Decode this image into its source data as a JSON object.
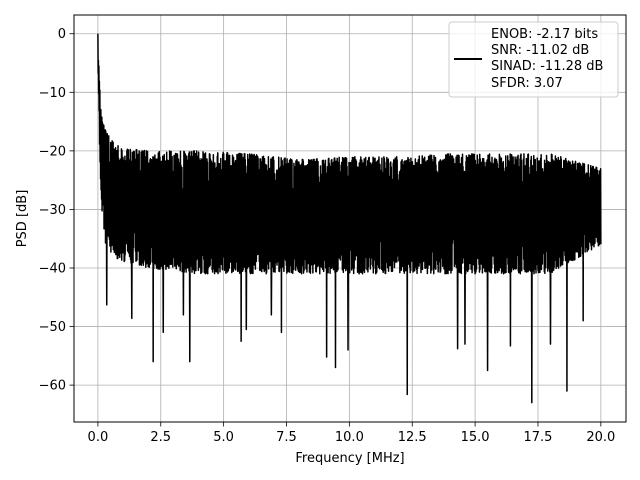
{
  "chart_data": {
    "type": "line",
    "title": "",
    "xlabel": "Frequency [MHz]",
    "ylabel": "PSD [dB]",
    "xlim": [
      -0.95,
      21.0
    ],
    "ylim": [
      -66.3,
      3.2
    ],
    "xticks": [
      0.0,
      2.5,
      5.0,
      7.5,
      10.0,
      12.5,
      15.0,
      17.5,
      20.0
    ],
    "xtick_labels": [
      "0.0",
      "2.5",
      "5.0",
      "7.5",
      "10.0",
      "12.5",
      "15.0",
      "17.5",
      "20.0"
    ],
    "yticks": [
      0,
      -10,
      -20,
      -30,
      -40,
      -50,
      -60
    ],
    "ytick_labels": [
      "0",
      "−10",
      "−20",
      "−30",
      "−40",
      "−50",
      "−60"
    ],
    "grid": true,
    "legend_position": "top-right",
    "legend_lines": [
      "ENOB: -2.17 bits",
      "SNR: -11.02 dB",
      "SINAD: -11.28 dB",
      "SFDR: 3.07"
    ],
    "series": [
      {
        "color": "#000000",
        "x_range": [
          0.0,
          20.0
        ],
        "num_points": 2048,
        "envelope": {
          "x": [
            0.0,
            0.03,
            0.08,
            0.15,
            0.3,
            0.6,
            1.0,
            2.0,
            4.0,
            6.0,
            8.0,
            10.0,
            12.0,
            14.0,
            16.0,
            18.0,
            20.0
          ],
          "upper": [
            0.0,
            -4.0,
            -9.0,
            -13.0,
            -16.5,
            -18.5,
            -19.5,
            -20.0,
            -20.0,
            -20.5,
            -21.5,
            -21.0,
            -21.0,
            -20.5,
            -20.5,
            -20.5,
            -23.0
          ],
          "lower": [
            -5.0,
            -12.0,
            -22.0,
            -30.0,
            -36.0,
            -38.0,
            -39.0,
            -40.0,
            -41.0,
            -41.0,
            -41.0,
            -41.0,
            -41.0,
            -41.0,
            -41.0,
            -41.0,
            -36.0
          ]
        },
        "dips": [
          {
            "x": 0.35,
            "y": -46.3
          },
          {
            "x": 1.35,
            "y": -48.6
          },
          {
            "x": 2.2,
            "y": -56.0
          },
          {
            "x": 2.6,
            "y": -51.0
          },
          {
            "x": 3.4,
            "y": -48.0
          },
          {
            "x": 3.65,
            "y": -56.0
          },
          {
            "x": 5.7,
            "y": -52.5
          },
          {
            "x": 5.9,
            "y": -50.5
          },
          {
            "x": 6.9,
            "y": -48.0
          },
          {
            "x": 7.3,
            "y": -51.0
          },
          {
            "x": 9.1,
            "y": -55.2
          },
          {
            "x": 9.45,
            "y": -57.0
          },
          {
            "x": 9.95,
            "y": -54.0
          },
          {
            "x": 12.3,
            "y": -61.6
          },
          {
            "x": 14.3,
            "y": -53.8
          },
          {
            "x": 14.6,
            "y": -53.0
          },
          {
            "x": 15.5,
            "y": -57.5
          },
          {
            "x": 16.4,
            "y": -53.3
          },
          {
            "x": 17.25,
            "y": -63.0
          },
          {
            "x": 18.0,
            "y": -53.0
          },
          {
            "x": 18.65,
            "y": -61.0
          },
          {
            "x": 19.3,
            "y": -49.0
          }
        ]
      }
    ]
  }
}
